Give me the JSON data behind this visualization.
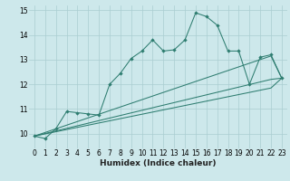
{
  "xlabel": "Humidex (Indice chaleur)",
  "xlim": [
    -0.5,
    23.5
  ],
  "ylim": [
    9.4,
    15.2
  ],
  "xticks": [
    0,
    1,
    2,
    3,
    4,
    5,
    6,
    7,
    8,
    9,
    10,
    11,
    12,
    13,
    14,
    15,
    16,
    17,
    18,
    19,
    20,
    21,
    22,
    23
  ],
  "yticks": [
    10,
    11,
    12,
    13,
    14,
    15
  ],
  "bg_color": "#cde8eb",
  "grid_color": "#aacdd1",
  "line_color": "#2e7d70",
  "line1_x": [
    0,
    1,
    2,
    3,
    4,
    5,
    6,
    7,
    8,
    9,
    10,
    11,
    12,
    13,
    14,
    15,
    16,
    17,
    18,
    19,
    20,
    21,
    22,
    23
  ],
  "line1_y": [
    9.9,
    9.8,
    10.2,
    10.9,
    10.85,
    10.8,
    10.75,
    12.0,
    12.45,
    13.05,
    13.35,
    13.8,
    13.35,
    13.4,
    13.8,
    14.9,
    14.75,
    14.4,
    13.35,
    13.35,
    12.0,
    13.1,
    13.2,
    12.25
  ],
  "line2_x": [
    0,
    22,
    23
  ],
  "line2_y": [
    9.9,
    13.15,
    12.25
  ],
  "line3_x": [
    0,
    22,
    23
  ],
  "line3_y": [
    9.9,
    12.2,
    12.25
  ],
  "line4_x": [
    0,
    22,
    23
  ],
  "line4_y": [
    9.9,
    11.85,
    12.25
  ]
}
